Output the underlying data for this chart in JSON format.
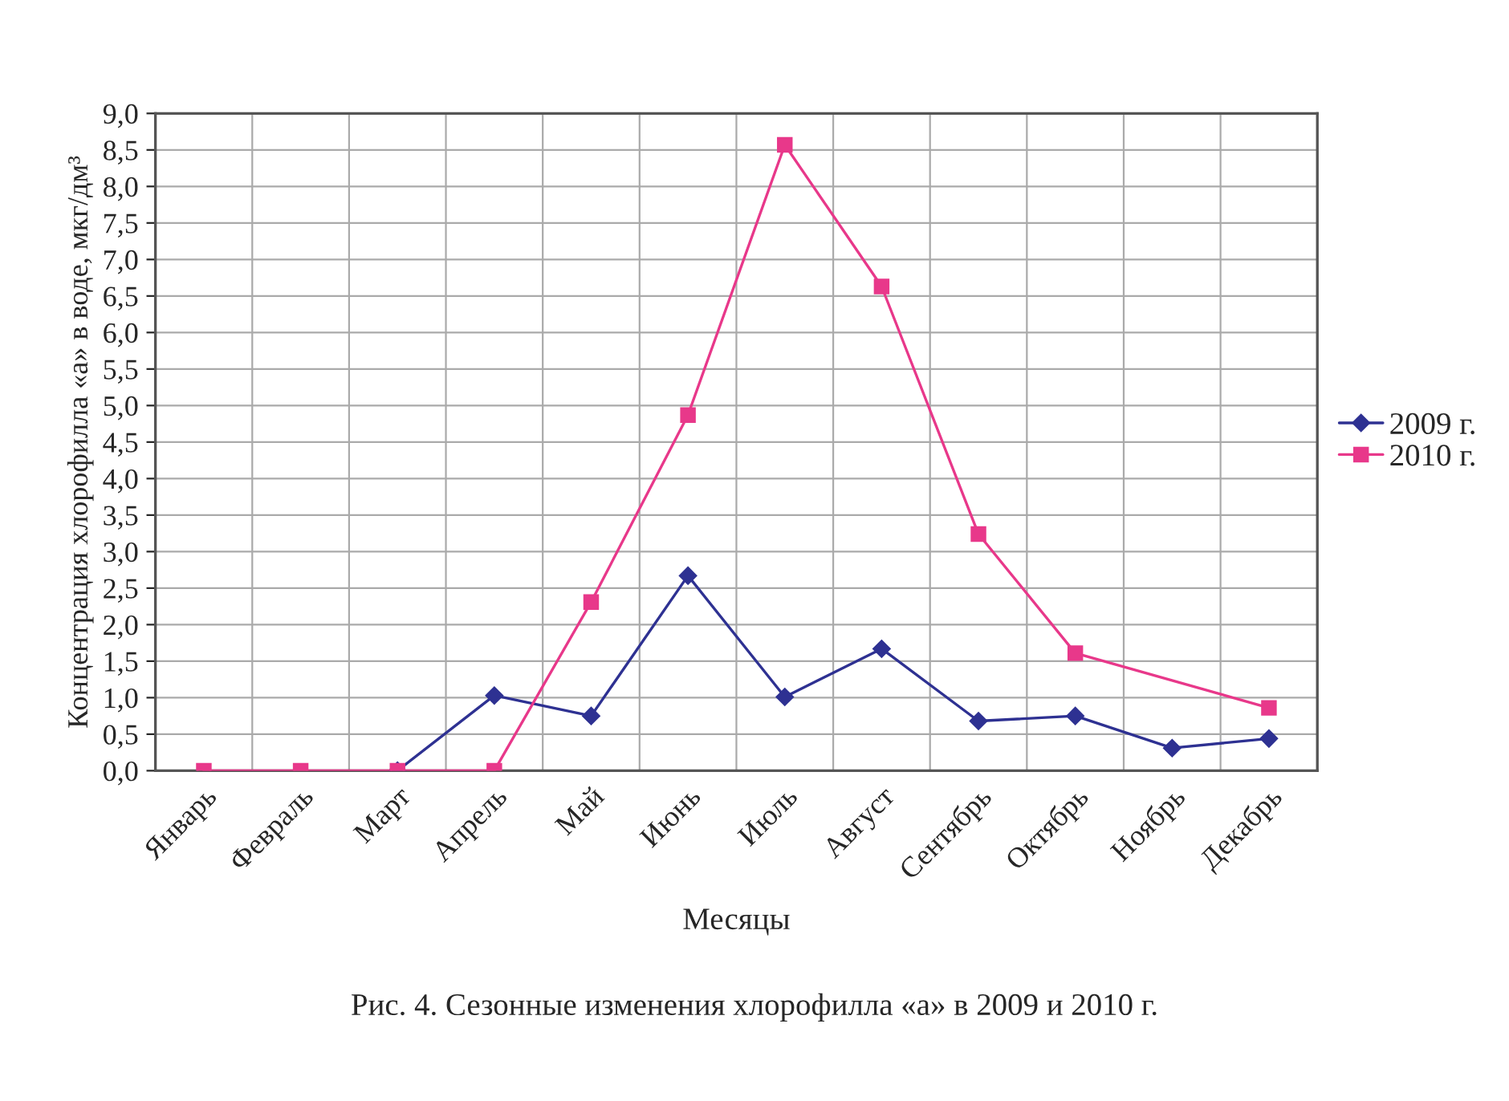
{
  "chart_data": {
    "type": "line",
    "title": "Рис. 4. Сезонные изменения хлорофилла «а» в 2009 и 2010 г.",
    "xlabel": "Месяцы",
    "ylabel": "Концентрация хлорофилла «а» в воде, мкг/дм³",
    "categories": [
      "Январь",
      "Февраль",
      "Март",
      "Апрель",
      "Май",
      "Июнь",
      "Июль",
      "Август",
      "Сентябрь",
      "Октябрь",
      "Ноябрь",
      "Декабрь"
    ],
    "series": [
      {
        "name": "2009 г.",
        "color": "#2e3192",
        "marker": "diamond",
        "values": [
          null,
          null,
          0,
          1.03,
          0.75,
          2.67,
          1.01,
          1.67,
          0.68,
          0.75,
          0.31,
          0.44
        ]
      },
      {
        "name": "2010 г.",
        "color": "#e8388a",
        "marker": "square",
        "values": [
          0,
          0,
          0,
          0,
          2.31,
          4.87,
          8.57,
          6.63,
          3.24,
          1.61,
          null,
          0.86
        ]
      }
    ],
    "ylim": [
      0,
      9
    ],
    "yticks": [
      {
        "value": 0,
        "label": "0,0"
      },
      {
        "value": 0.5,
        "label": "0,5"
      },
      {
        "value": 1,
        "label": "1,0"
      },
      {
        "value": 1.5,
        "label": "1,5"
      },
      {
        "value": 2,
        "label": "2,0"
      },
      {
        "value": 2.5,
        "label": "2,5"
      },
      {
        "value": 3,
        "label": "3,0"
      },
      {
        "value": 3.5,
        "label": "3,5"
      },
      {
        "value": 4,
        "label": "4,0"
      },
      {
        "value": 4.5,
        "label": "4,5"
      },
      {
        "value": 5,
        "label": "5,0"
      },
      {
        "value": 5.5,
        "label": "5,5"
      },
      {
        "value": 6,
        "label": "6,0"
      },
      {
        "value": 6.5,
        "label": "6,5"
      },
      {
        "value": 7,
        "label": "7,0"
      },
      {
        "value": 7.5,
        "label": "7,5"
      },
      {
        "value": 8,
        "label": "8,0"
      },
      {
        "value": 8.5,
        "label": "8,5"
      },
      {
        "value": 9,
        "label": "9,0"
      }
    ],
    "grid": true,
    "legend": "right",
    "line_style": "solid"
  }
}
